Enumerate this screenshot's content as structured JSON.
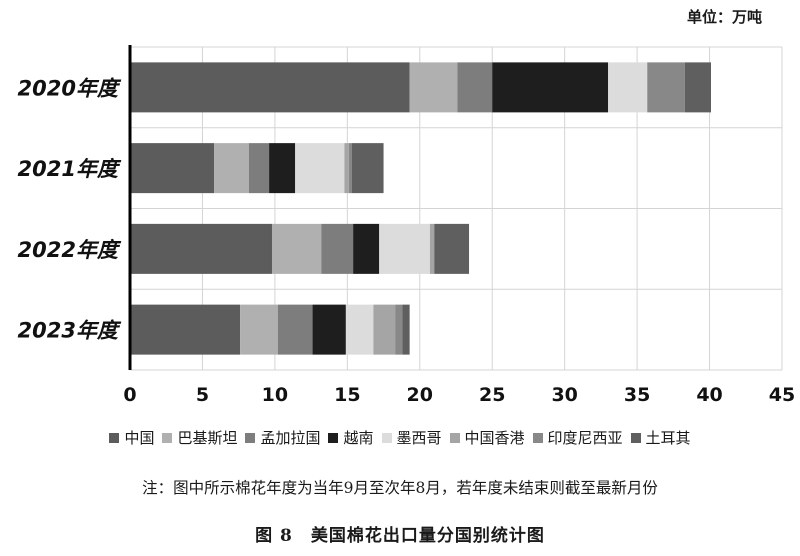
{
  "unit_label": "单位：万吨",
  "note": "注：图中所示棉花年度为当年9月至次年8月，若年度未结束则截至最新月份",
  "caption": "图 8　美国棉花出口量分国别统计图",
  "chart_data": {
    "type": "bar",
    "orientation": "horizontal",
    "stacked": true,
    "categories": [
      "2020年度",
      "2021年度",
      "2022年度",
      "2023年度"
    ],
    "xlim": [
      0,
      45
    ],
    "xticks": [
      0,
      5,
      10,
      15,
      20,
      25,
      30,
      35,
      40,
      45
    ],
    "grid": true,
    "legend_position": "bottom",
    "series": [
      {
        "name": "中国",
        "color": "#5c5c5c",
        "values": [
          19.3,
          5.8,
          9.8,
          7.6
        ]
      },
      {
        "name": "巴基斯坦",
        "color": "#b0b0b0",
        "values": [
          3.3,
          2.4,
          3.4,
          2.6
        ]
      },
      {
        "name": "孟加拉国",
        "color": "#7d7d7d",
        "values": [
          2.4,
          1.4,
          2.2,
          2.4
        ]
      },
      {
        "name": "越南",
        "color": "#1e1e1e",
        "values": [
          8.0,
          1.8,
          1.8,
          2.3
        ]
      },
      {
        "name": "墨西哥",
        "color": "#dcdcdc",
        "values": [
          2.7,
          3.4,
          3.5,
          1.9
        ]
      },
      {
        "name": "中国香港",
        "color": "#a5a5a5",
        "values": [
          0.0,
          0.3,
          0.3,
          1.5
        ]
      },
      {
        "name": "印度尼西亚",
        "color": "#888888",
        "values": [
          2.6,
          0.2,
          0.0,
          0.5
        ]
      },
      {
        "name": "土耳其",
        "color": "#5f5f5f",
        "values": [
          1.8,
          2.2,
          2.4,
          0.5
        ]
      }
    ]
  }
}
